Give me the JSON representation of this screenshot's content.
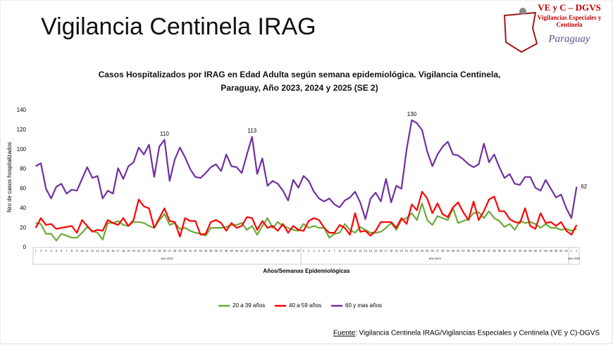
{
  "page_title": "Vigilancia Centinela IRAG",
  "logo": {
    "title": "VE y C – DGVS",
    "line1": "Vigilancias Especiales y",
    "line2": "Centinela",
    "country": "Paraguay"
  },
  "source": {
    "label": "Fuente",
    "text": ": Vigilancia  Centinela IRAG/Vigilancias Especiales y Centinela (VE y C)-DGVS"
  },
  "chart_data": {
    "type": "line",
    "title": "Casos Hospitalizados por IRAG en Edad Adulta según semana epidemiológica. Vigilancia Centinela,",
    "subtitle": "Paraguay, Año 2023, 2024 y 2025 (SE 2)",
    "y_label": "Nro de casos hospitalizados",
    "x_label": "Años/Semanas Epidemiológicas",
    "ylim": [
      0,
      140
    ],
    "yticks": [
      0,
      20,
      40,
      60,
      80,
      100,
      120,
      140
    ],
    "year_groups": [
      {
        "label": "Año 2023",
        "count": 52
      },
      {
        "label": "Año 2024",
        "count": 52
      },
      {
        "label": "Año 2025",
        "count": 2
      }
    ],
    "categories": [
      "1",
      "2",
      "3",
      "4",
      "5",
      "6",
      "7",
      "8",
      "9",
      "10",
      "11",
      "12",
      "13",
      "14",
      "15",
      "16",
      "17",
      "18",
      "19",
      "20",
      "21",
      "22",
      "23",
      "24",
      "25",
      "26",
      "27",
      "28",
      "29",
      "30",
      "31",
      "32",
      "33",
      "34",
      "35",
      "36",
      "37",
      "38",
      "39",
      "40",
      "41",
      "42",
      "43",
      "44",
      "45",
      "46",
      "47",
      "48",
      "49",
      "50",
      "51",
      "52",
      "1",
      "2",
      "3",
      "4",
      "5",
      "6",
      "7",
      "8",
      "9",
      "10",
      "11",
      "12",
      "13",
      "14",
      "15",
      "16",
      "17",
      "18",
      "19",
      "20",
      "21",
      "22",
      "23",
      "24",
      "25",
      "26",
      "27",
      "28",
      "29",
      "30",
      "31",
      "32",
      "33",
      "34",
      "35",
      "36",
      "37",
      "38",
      "39",
      "40",
      "41",
      "42",
      "43",
      "44",
      "45",
      "46",
      "47",
      "48",
      "49",
      "50",
      "51",
      "52",
      "1",
      "2"
    ],
    "series": [
      {
        "name": "20 a 39 años",
        "color": "#6aaa3a",
        "values": [
          25,
          24,
          14,
          14,
          7,
          14,
          12,
          10,
          10,
          15,
          21,
          17,
          15,
          8,
          25,
          25,
          27,
          23,
          22,
          26,
          26,
          25,
          22,
          20,
          28,
          34,
          23,
          25,
          19,
          20,
          17,
          15,
          14,
          12,
          20,
          20,
          20,
          21,
          23,
          23,
          25,
          18,
          22,
          13,
          22,
          30,
          20,
          26,
          22,
          20,
          18,
          17,
          24,
          20,
          22,
          20,
          20,
          10,
          14,
          15,
          24,
          18,
          15,
          21,
          18,
          15,
          15,
          16,
          20,
          25,
          18,
          28,
          30,
          35,
          28,
          45,
          28,
          23,
          32,
          30,
          28,
          40,
          25,
          27,
          29,
          35,
          36,
          30,
          37,
          30,
          27,
          21,
          24,
          18,
          27,
          25,
          26,
          24,
          20,
          24,
          20,
          20,
          18,
          19,
          17,
          19
        ]
      },
      {
        "name": "40 a 59 años",
        "color": "#ff0000",
        "values": [
          20,
          30,
          23,
          24,
          19,
          20,
          21,
          22,
          15,
          28,
          22,
          16,
          18,
          17,
          28,
          25,
          23,
          30,
          22,
          28,
          49,
          42,
          40,
          20,
          30,
          40,
          27,
          26,
          11,
          30,
          27,
          27,
          13,
          14,
          26,
          28,
          25,
          17,
          25,
          20,
          22,
          31,
          30,
          18,
          27,
          20,
          22,
          17,
          24,
          15,
          22,
          18,
          17,
          27,
          30,
          28,
          20,
          15,
          15,
          23,
          20,
          13,
          35,
          16,
          17,
          12,
          17,
          26,
          26,
          26,
          20,
          30,
          24,
          44,
          38,
          57,
          50,
          35,
          45,
          34,
          31,
          41,
          46,
          36,
          28,
          47,
          28,
          37,
          49,
          52,
          37,
          37,
          29,
          26,
          25,
          40,
          22,
          19,
          35,
          25,
          26,
          22,
          26,
          17,
          13,
          23
        ]
      },
      {
        "name": "60 y mas años",
        "color": "#7030a0",
        "values": [
          83,
          86,
          60,
          50,
          62,
          65,
          55,
          59,
          58,
          70,
          82,
          71,
          73,
          50,
          58,
          55,
          81,
          70,
          83,
          87,
          102,
          95,
          105,
          72,
          103,
          110,
          68,
          90,
          102,
          92,
          80,
          72,
          71,
          76,
          82,
          85,
          78,
          95,
          83,
          82,
          76,
          95,
          113,
          75,
          91,
          63,
          68,
          65,
          58,
          48,
          69,
          61,
          73,
          68,
          57,
          50,
          47,
          50,
          44,
          41,
          48,
          51,
          57,
          46,
          29,
          50,
          56,
          47,
          70,
          46,
          63,
          60,
          100,
          130,
          127,
          120,
          98,
          83,
          95,
          103,
          108,
          95,
          94,
          90,
          85,
          82,
          85,
          106,
          87,
          95,
          82,
          71,
          75,
          65,
          64,
          72,
          72,
          61,
          58,
          69,
          60,
          51,
          54,
          40,
          30,
          62
        ],
        "value_labels": [
          null,
          null,
          null,
          null,
          null,
          null,
          null,
          null,
          null,
          null,
          null,
          null,
          null,
          null,
          null,
          null,
          null,
          null,
          null,
          null,
          null,
          null,
          null,
          null,
          null,
          "110",
          null,
          null,
          null,
          null,
          null,
          null,
          null,
          null,
          null,
          null,
          null,
          null,
          null,
          null,
          null,
          null,
          "113",
          null,
          null,
          null,
          null,
          null,
          null,
          null,
          null,
          null,
          null,
          null,
          null,
          null,
          null,
          null,
          null,
          null,
          null,
          null,
          null,
          null,
          null,
          null,
          null,
          null,
          null,
          null,
          null,
          null,
          null,
          "130",
          null,
          null,
          null,
          null,
          null,
          null,
          null,
          null,
          null,
          null,
          null,
          null,
          null,
          null,
          null,
          null,
          null,
          null,
          null,
          null,
          null,
          null,
          null,
          null,
          null,
          null,
          null,
          null,
          null,
          null,
          null,
          "62"
        ]
      }
    ]
  }
}
